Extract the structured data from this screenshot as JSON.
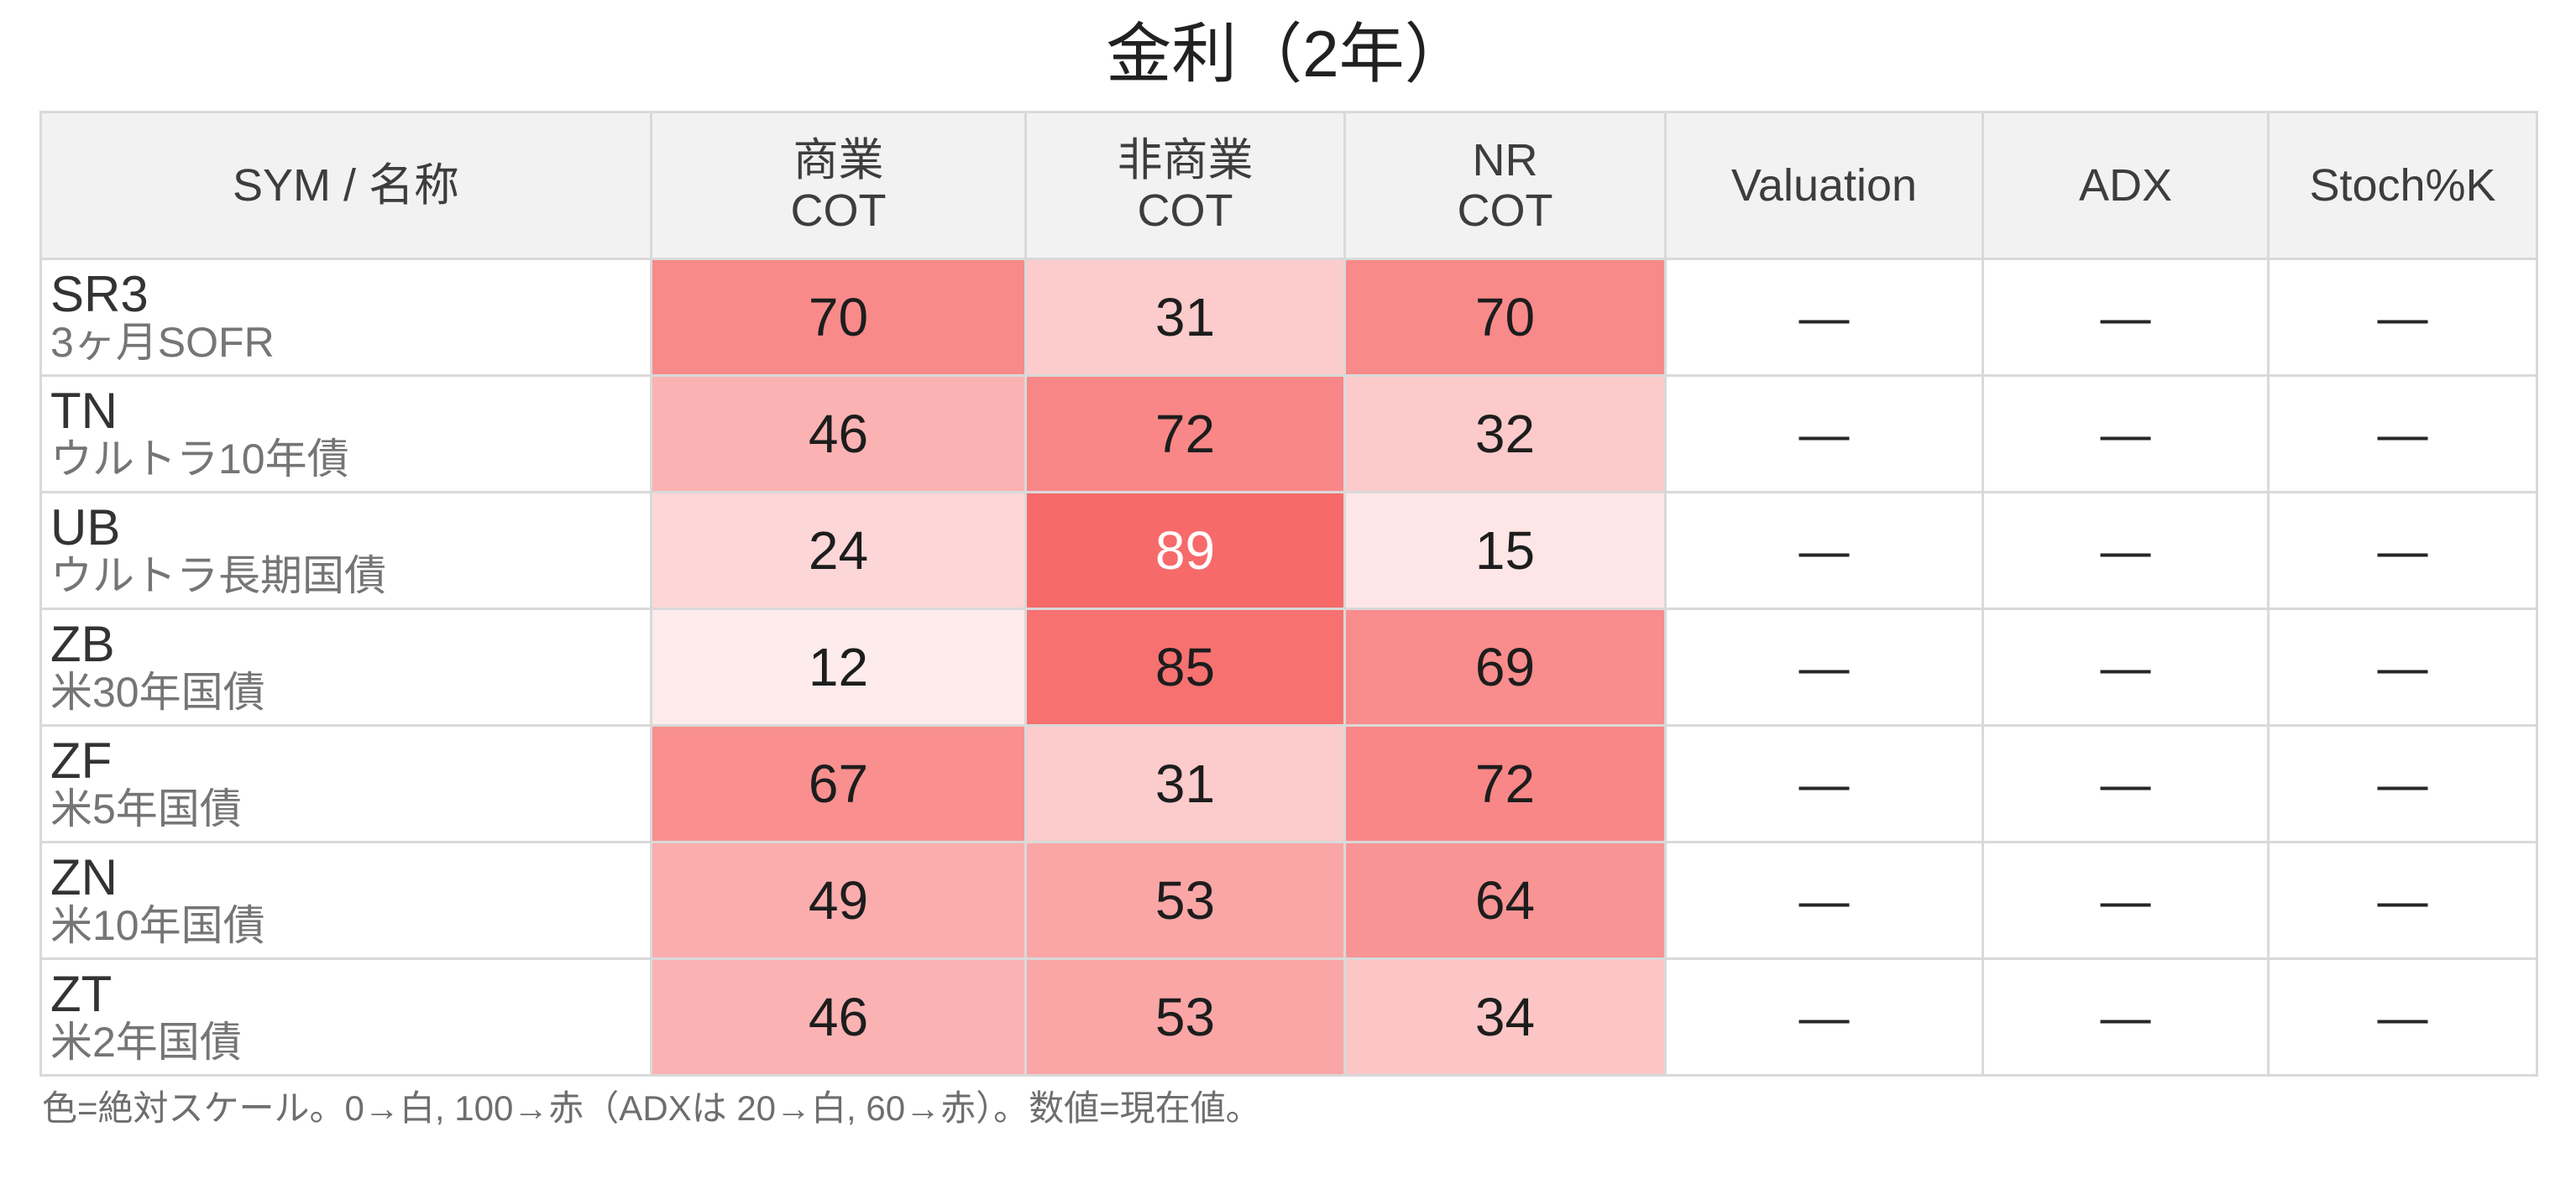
{
  "title": "金利（2年）",
  "footnote": "色=絶対スケール。0→白, 100→赤（ADXは 20→白, 60→赤）。数値=現在値。",
  "table": {
    "columns": [
      {
        "key": "sym",
        "label": "SYM / 名称",
        "kind": "label"
      },
      {
        "key": "com",
        "label": "商業\nCOT",
        "kind": "heat"
      },
      {
        "key": "noncom",
        "label": "非商業\nCOT",
        "kind": "heat"
      },
      {
        "key": "nr",
        "label": "NR\nCOT",
        "kind": "heat"
      },
      {
        "key": "valuation",
        "label": "Valuation",
        "kind": "dash"
      },
      {
        "key": "adx",
        "label": "ADX",
        "kind": "dash"
      },
      {
        "key": "stochk",
        "label": "Stoch%K",
        "kind": "dash"
      }
    ],
    "rows": [
      {
        "sym": "SR3",
        "name": "3ヶ月SOFR",
        "com": 70,
        "noncom": 31,
        "nr": 70,
        "valuation": "—",
        "adx": "—",
        "stochk": "—"
      },
      {
        "sym": "TN",
        "name": "ウルトラ10年債",
        "com": 46,
        "noncom": 72,
        "nr": 32,
        "valuation": "—",
        "adx": "—",
        "stochk": "—"
      },
      {
        "sym": "UB",
        "name": "ウルトラ長期国債",
        "com": 24,
        "noncom": 89,
        "nr": 15,
        "valuation": "—",
        "adx": "—",
        "stochk": "—"
      },
      {
        "sym": "ZB",
        "name": "米30年国債",
        "com": 12,
        "noncom": 85,
        "nr": 69,
        "valuation": "—",
        "adx": "—",
        "stochk": "—"
      },
      {
        "sym": "ZF",
        "name": "米5年国債",
        "com": 67,
        "noncom": 31,
        "nr": 72,
        "valuation": "—",
        "adx": "—",
        "stochk": "—"
      },
      {
        "sym": "ZN",
        "name": "米10年国債",
        "com": 49,
        "noncom": 53,
        "nr": 64,
        "valuation": "—",
        "adx": "—",
        "stochk": "—"
      },
      {
        "sym": "ZT",
        "name": "米2年国債",
        "com": 46,
        "noncom": 53,
        "nr": 34,
        "valuation": "—",
        "adx": "—",
        "stochk": "—"
      }
    ]
  },
  "heat_scale": {
    "domain": [
      0,
      100
    ],
    "min_color": "#ffffff",
    "max_color": "#f65858",
    "white_text_threshold": 86
  },
  "colors": {
    "header_bg": "#f2f2f2",
    "border": "#d9d9d9",
    "title_text": "#212121",
    "symbol_text": "#333333",
    "name_text": "#757575",
    "value_text": "#1d1d1d",
    "footnote_text": "#6e6e6e"
  },
  "chart_data": {
    "type": "heatmap",
    "title": "金利（2年）",
    "columns": [
      "商業 COT",
      "非商業 COT",
      "NR COT",
      "Valuation",
      "ADX",
      "Stoch%K"
    ],
    "rows": [
      "SR3 (3ヶ月SOFR)",
      "TN (ウルトラ10年債)",
      "UB (ウルトラ長期国債)",
      "ZB (米30年国債)",
      "ZF (米5年国債)",
      "ZN (米10年国債)",
      "ZT (米2年国債)"
    ],
    "values": [
      [
        70,
        31,
        70,
        null,
        null,
        null
      ],
      [
        46,
        72,
        32,
        null,
        null,
        null
      ],
      [
        24,
        89,
        15,
        null,
        null,
        null
      ],
      [
        12,
        85,
        69,
        null,
        null,
        null
      ],
      [
        67,
        31,
        72,
        null,
        null,
        null
      ],
      [
        49,
        53,
        64,
        null,
        null,
        null
      ],
      [
        46,
        53,
        34,
        null,
        null,
        null
      ]
    ],
    "empty_cell_marker": "—",
    "color_scale": {
      "0": "#ffffff",
      "100": "#f65858"
    },
    "adx_scale_note": "ADXは 20→白, 60→赤",
    "note": "色=絶対スケール。0→白, 100→赤（ADXは 20→白, 60→赤）。数値=現在値。",
    "legend_position": "none",
    "grid": true
  }
}
